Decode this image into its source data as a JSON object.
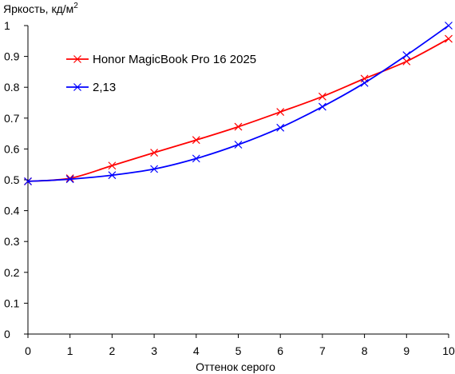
{
  "chart_data": {
    "type": "line",
    "ylabel": "Яркость, кд/м",
    "ylabel_sup": "2",
    "xlabel": "Оттенок серого",
    "xlim": [
      0,
      10
    ],
    "ylim": [
      0,
      1
    ],
    "x_ticks": [
      "0",
      "1",
      "2",
      "3",
      "4",
      "5",
      "6",
      "7",
      "8",
      "9",
      "10"
    ],
    "y_ticks": [
      "0",
      "0.1",
      "0.2",
      "0.3",
      "0.4",
      "0.5",
      "0.6",
      "0.7",
      "0.8",
      "0.9",
      "1"
    ],
    "grid": false,
    "legend_position": "top-left",
    "x": [
      0,
      1,
      2,
      3,
      4,
      5,
      6,
      7,
      8,
      9,
      10
    ],
    "series": [
      {
        "name": "Honor MagicBook Pro 16 2025",
        "color": "#ff0000",
        "marker": "x",
        "values": [
          0.495,
          0.505,
          0.546,
          0.588,
          0.629,
          0.672,
          0.72,
          0.77,
          0.828,
          0.884,
          0.957
        ]
      },
      {
        "name": "2,13",
        "color": "#0000ff",
        "marker": "x",
        "values": [
          0.495,
          0.502,
          0.515,
          0.535,
          0.569,
          0.614,
          0.669,
          0.737,
          0.814,
          0.904,
          1.0
        ]
      }
    ]
  }
}
